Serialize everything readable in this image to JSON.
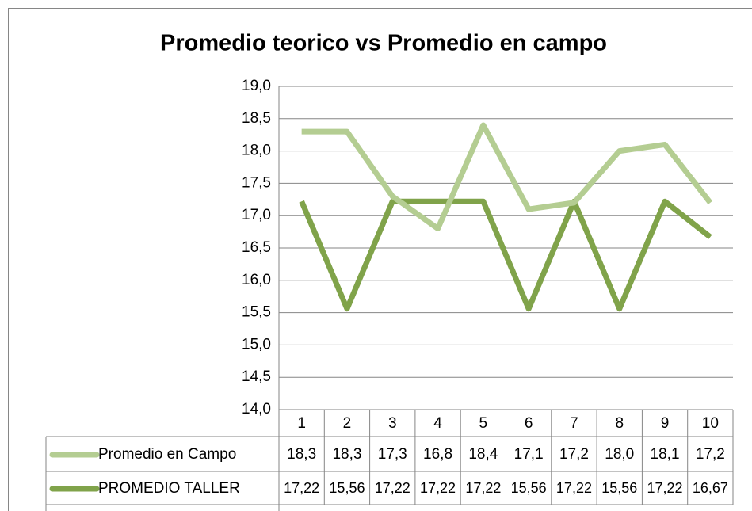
{
  "chart_data": {
    "type": "line",
    "title": "Promedio teorico vs Promedio en campo",
    "categories": [
      "1",
      "2",
      "3",
      "4",
      "5",
      "6",
      "7",
      "8",
      "9",
      "10"
    ],
    "series": [
      {
        "name": "Promedio en Campo",
        "color": "#b4cd92",
        "values": [
          18.3,
          18.3,
          17.3,
          16.8,
          18.4,
          17.1,
          17.2,
          18.0,
          18.1,
          17.2
        ],
        "value_labels": [
          "18,3",
          "18,3",
          "17,3",
          "16,8",
          "18,4",
          "17,1",
          "17,2",
          "18,0",
          "18,1",
          "17,2"
        ]
      },
      {
        "name": "PROMEDIO TALLER",
        "color": "#80a34a",
        "values": [
          17.22,
          15.56,
          17.22,
          17.22,
          17.22,
          15.56,
          17.22,
          15.56,
          17.22,
          16.67
        ],
        "value_labels": [
          "17,22",
          "15,56",
          "17,22",
          "17,22",
          "17,22",
          "15,56",
          "17,22",
          "15,56",
          "17,22",
          "16,67"
        ]
      }
    ],
    "ylim": [
      14,
      19
    ],
    "yticks": [
      {
        "value": 14,
        "label": "14,0"
      },
      {
        "value": 14.5,
        "label": "14,5"
      },
      {
        "value": 15,
        "label": "15,0"
      },
      {
        "value": 15.5,
        "label": "15,5"
      },
      {
        "value": 16,
        "label": "16,0"
      },
      {
        "value": 16.5,
        "label": "16,5"
      },
      {
        "value": 17,
        "label": "17,0"
      },
      {
        "value": 17.5,
        "label": "17,5"
      },
      {
        "value": 18,
        "label": "18,0"
      },
      {
        "value": 18.5,
        "label": "18,5"
      },
      {
        "value": 19,
        "label": "19,0"
      }
    ],
    "grid": true,
    "legend": "table"
  }
}
